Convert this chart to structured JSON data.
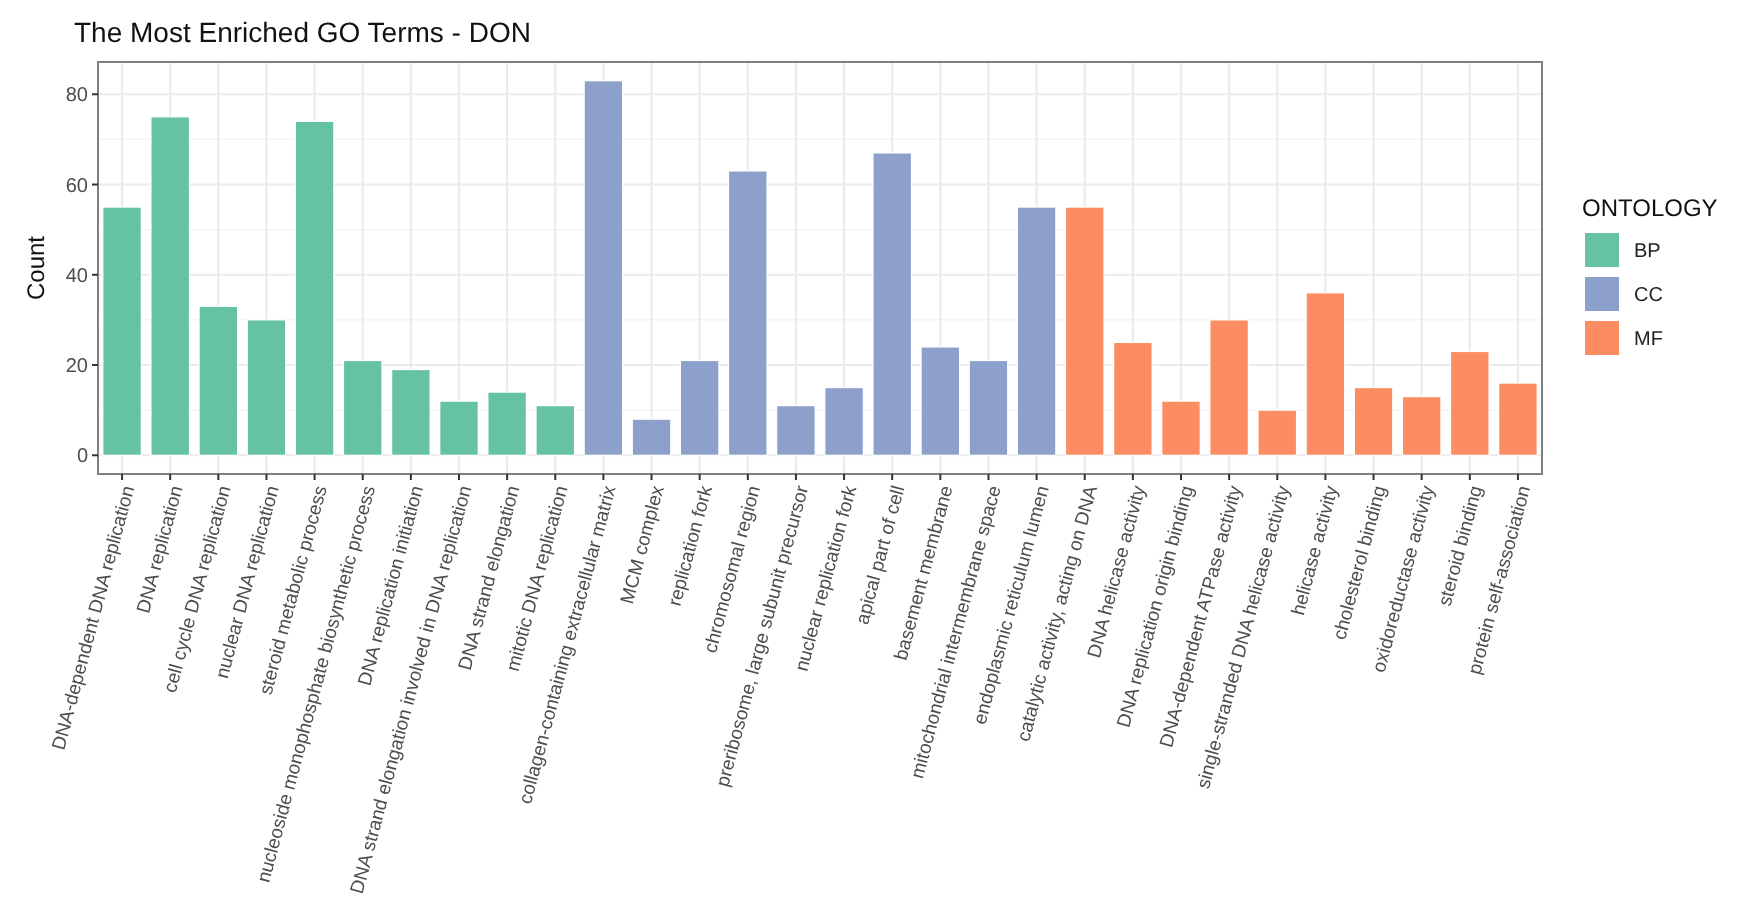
{
  "chart_data": {
    "type": "bar",
    "title": "The Most Enriched GO Terms - DON",
    "ylabel": "Count",
    "legend_title": "ONTOLOGY",
    "legend": "right",
    "grid": true,
    "categories": [
      "DNA-dependent DNA replication",
      "DNA replication",
      "cell cycle DNA replication",
      "nuclear DNA replication",
      "steroid metabolic process",
      "nucleoside monophosphate biosynthetic process",
      "DNA replication initiation",
      "DNA strand elongation involved in DNA replication",
      "DNA strand elongation",
      "mitotic DNA replication",
      "collagen-containing extracellular matrix",
      "MCM complex",
      "replication fork",
      "chromosomal region",
      "preribosome, large subunit precursor",
      "nuclear replication fork",
      "apical part of cell",
      "basement membrane",
      "mitochondrial intermembrane space",
      "endoplasmic reticulum lumen",
      "catalytic activity, acting on DNA",
      "DNA helicase activity",
      "DNA replication origin binding",
      "DNA-dependent ATPase activity",
      "single-stranded DNA helicase activity",
      "helicase activity",
      "cholesterol binding",
      "oxidoreductase activity",
      "steroid binding",
      "protein self-association"
    ],
    "ylim": [
      -4.15,
      87.15
    ],
    "yticks": [
      0,
      20,
      40,
      60,
      80
    ],
    "series": [
      {
        "name": "BP",
        "color": "#66c2a5",
        "values": [
          55,
          75,
          33,
          30,
          74,
          21,
          19,
          12,
          14,
          11,
          null,
          null,
          null,
          null,
          null,
          null,
          null,
          null,
          null,
          null,
          null,
          null,
          null,
          null,
          null,
          null,
          null,
          null,
          null,
          null
        ]
      },
      {
        "name": "CC",
        "color": "#8da0cb",
        "values": [
          null,
          null,
          null,
          null,
          null,
          null,
          null,
          null,
          null,
          null,
          83,
          8,
          21,
          63,
          11,
          15,
          67,
          24,
          21,
          55,
          null,
          null,
          null,
          null,
          null,
          null,
          null,
          null,
          null,
          null
        ]
      },
      {
        "name": "MF",
        "color": "#fc8d62",
        "values": [
          null,
          null,
          null,
          null,
          null,
          null,
          null,
          null,
          null,
          null,
          null,
          null,
          null,
          null,
          null,
          null,
          null,
          null,
          null,
          null,
          55,
          25,
          12,
          30,
          10,
          36,
          15,
          13,
          23,
          16
        ]
      }
    ]
  }
}
